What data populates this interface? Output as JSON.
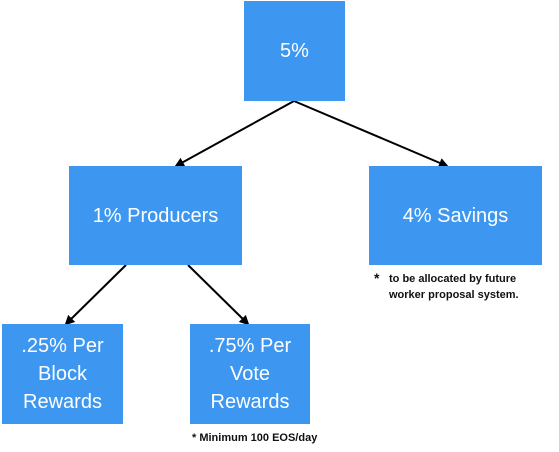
{
  "boxes": {
    "root": "5%",
    "producers": "1% Producers",
    "savings": "4% Savings",
    "block_rewards": ".25% Per\nBlock\nRewards",
    "vote_rewards": ".75% Per\nVote\nRewards"
  },
  "notes": {
    "savings_star": "*",
    "savings_text": "to be allocated by future\nworker proposal system.",
    "vote_note": "* Minimum 100 EOS/day"
  },
  "colors": {
    "box_fill": "#3d97f0",
    "box_text": "#ffffff",
    "arrow": "#000000"
  }
}
